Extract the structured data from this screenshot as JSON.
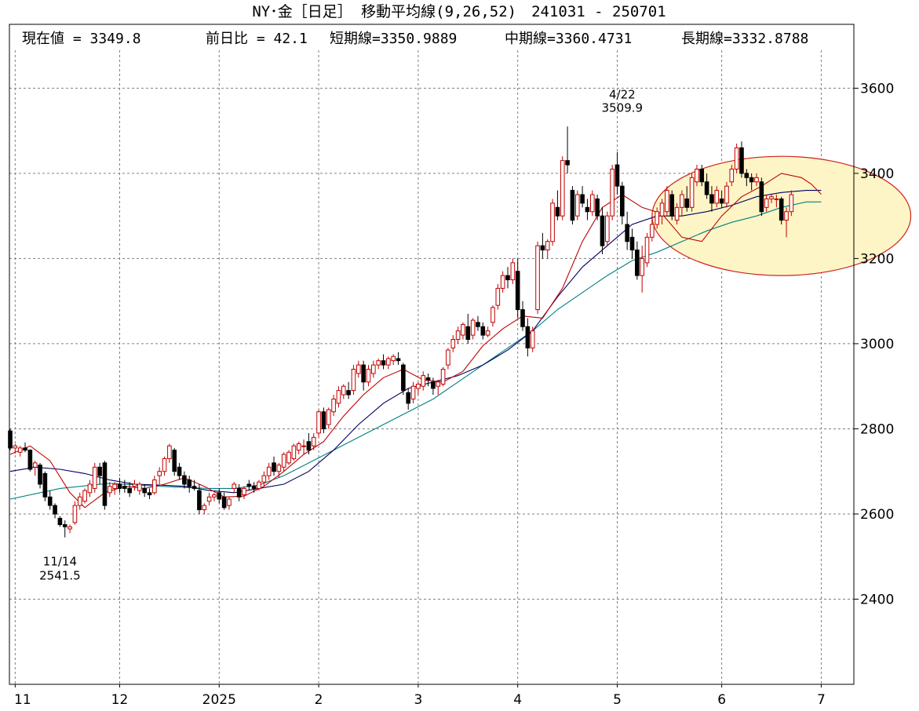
{
  "title": "NY･金［日足］ 移動平均線(9,26,52)　241031 - 250701",
  "info": {
    "current": "現在値 = 3349.8",
    "change": "前日比 = 42.1",
    "short": "短期線=3350.9889",
    "mid": "中期線=3360.4731",
    "long": "長期線=3332.8788"
  },
  "annotations": [
    {
      "label_date": "4/22",
      "label_value": "3509.9",
      "x": 123,
      "y": 3509.9
    },
    {
      "label_date": "11/14",
      "label_value": "2541.5",
      "x": 10,
      "y": 2541.5
    }
  ],
  "colors": {
    "up": "#c00000",
    "down": "#000000",
    "short_ma": "#c00000",
    "mid_ma": "#000060",
    "long_ma": "#008080",
    "grid": "#808080",
    "highlight_fill": "#fdf5c6",
    "highlight_stroke": "#d02020"
  },
  "chart_data": {
    "type": "candlestick",
    "period": "241031 - 250701",
    "ylim": [
      2200,
      3750
    ],
    "yticks": [
      2400,
      2600,
      2800,
      3000,
      3200,
      3400,
      3600
    ],
    "xticks": [
      {
        "label": "11",
        "x": 1
      },
      {
        "label": "12",
        "x": 22
      },
      {
        "label": "2025",
        "x": 42
      },
      {
        "label": "2",
        "x": 62
      },
      {
        "label": "3",
        "x": 82
      },
      {
        "label": "4",
        "x": 102
      },
      {
        "label": "5",
        "x": 122
      },
      {
        "label": "6",
        "x": 143
      },
      {
        "label": "7",
        "x": 163
      }
    ],
    "grid": true,
    "x_max": 170,
    "highlight": {
      "x": 155,
      "y": 3300,
      "rx": 26,
      "ry": 140
    },
    "candles": [
      [
        2795,
        2800,
        2750,
        2755
      ],
      [
        2755,
        2765,
        2742,
        2760
      ],
      [
        2745,
        2760,
        2735,
        2755
      ],
      [
        2755,
        2768,
        2745,
        2750
      ],
      [
        2750,
        2752,
        2700,
        2705
      ],
      [
        2710,
        2725,
        2690,
        2720
      ],
      [
        2715,
        2720,
        2660,
        2670
      ],
      [
        2695,
        2700,
        2630,
        2640
      ],
      [
        2640,
        2655,
        2610,
        2620
      ],
      [
        2620,
        2625,
        2590,
        2600
      ],
      [
        2590,
        2595,
        2570,
        2575
      ],
      [
        2575,
        2585,
        2545,
        2570
      ],
      [
        2565,
        2575,
        2555,
        2570
      ],
      [
        2580,
        2630,
        2575,
        2620
      ],
      [
        2620,
        2650,
        2610,
        2640
      ],
      [
        2630,
        2660,
        2625,
        2655
      ],
      [
        2650,
        2680,
        2640,
        2670
      ],
      [
        2660,
        2720,
        2650,
        2710
      ],
      [
        2710,
        2720,
        2670,
        2690
      ],
      [
        2720,
        2725,
        2610,
        2620
      ],
      [
        2650,
        2675,
        2640,
        2665
      ],
      [
        2660,
        2675,
        2645,
        2670
      ],
      [
        2670,
        2685,
        2650,
        2660
      ],
      [
        2665,
        2680,
        2650,
        2660
      ],
      [
        2660,
        2675,
        2640,
        2650
      ],
      [
        2665,
        2680,
        2655,
        2670
      ],
      [
        2655,
        2675,
        2645,
        2670
      ],
      [
        2660,
        2670,
        2640,
        2650
      ],
      [
        2650,
        2660,
        2635,
        2645
      ],
      [
        2650,
        2690,
        2645,
        2680
      ],
      [
        2690,
        2710,
        2670,
        2700
      ],
      [
        2700,
        2735,
        2690,
        2730
      ],
      [
        2730,
        2765,
        2720,
        2760
      ],
      [
        2750,
        2755,
        2690,
        2700
      ],
      [
        2710,
        2720,
        2680,
        2690
      ],
      [
        2690,
        2700,
        2660,
        2670
      ],
      [
        2680,
        2690,
        2650,
        2665
      ],
      [
        2665,
        2680,
        2655,
        2660
      ],
      [
        2655,
        2670,
        2600,
        2610
      ],
      [
        2610,
        2625,
        2600,
        2620
      ],
      [
        2630,
        2650,
        2620,
        2640
      ],
      [
        2640,
        2650,
        2630,
        2645
      ],
      [
        2650,
        2660,
        2625,
        2635
      ],
      [
        2640,
        2650,
        2610,
        2615
      ],
      [
        2620,
        2640,
        2610,
        2635
      ],
      [
        2660,
        2675,
        2650,
        2670
      ],
      [
        2660,
        2670,
        2630,
        2640
      ],
      [
        2645,
        2665,
        2635,
        2660
      ],
      [
        2670,
        2680,
        2655,
        2665
      ],
      [
        2665,
        2675,
        2650,
        2660
      ],
      [
        2660,
        2680,
        2655,
        2675
      ],
      [
        2675,
        2700,
        2665,
        2690
      ],
      [
        2690,
        2720,
        2680,
        2710
      ],
      [
        2720,
        2735,
        2690,
        2700
      ],
      [
        2700,
        2720,
        2685,
        2715
      ],
      [
        2710,
        2745,
        2700,
        2740
      ],
      [
        2720,
        2750,
        2715,
        2745
      ],
      [
        2730,
        2765,
        2725,
        2760
      ],
      [
        2750,
        2770,
        2740,
        2765
      ],
      [
        2760,
        2775,
        2740,
        2760
      ],
      [
        2770,
        2790,
        2740,
        2750
      ],
      [
        2760,
        2790,
        2750,
        2780
      ],
      [
        2790,
        2845,
        2780,
        2840
      ],
      [
        2840,
        2850,
        2790,
        2800
      ],
      [
        2810,
        2850,
        2800,
        2845
      ],
      [
        2840,
        2880,
        2830,
        2870
      ],
      [
        2860,
        2900,
        2850,
        2890
      ],
      [
        2880,
        2905,
        2870,
        2900
      ],
      [
        2890,
        2910,
        2870,
        2880
      ],
      [
        2890,
        2950,
        2880,
        2940
      ],
      [
        2930,
        2960,
        2920,
        2950
      ],
      [
        2950,
        2960,
        2890,
        2910
      ],
      [
        2910,
        2950,
        2900,
        2940
      ],
      [
        2930,
        2960,
        2920,
        2950
      ],
      [
        2950,
        2965,
        2940,
        2960
      ],
      [
        2960,
        2975,
        2940,
        2950
      ],
      [
        2950,
        2970,
        2940,
        2965
      ],
      [
        2960,
        2975,
        2950,
        2970
      ],
      [
        2965,
        2980,
        2950,
        2960
      ],
      [
        2950,
        2955,
        2880,
        2890
      ],
      [
        2885,
        2895,
        2845,
        2860
      ],
      [
        2870,
        2910,
        2860,
        2900
      ],
      [
        2895,
        2910,
        2880,
        2905
      ],
      [
        2900,
        2935,
        2890,
        2925
      ],
      [
        2920,
        2930,
        2900,
        2915
      ],
      [
        2910,
        2920,
        2880,
        2895
      ],
      [
        2900,
        2915,
        2880,
        2910
      ],
      [
        2905,
        2945,
        2900,
        2940
      ],
      [
        2950,
        2990,
        2940,
        2985
      ],
      [
        2990,
        3020,
        2980,
        3010
      ],
      [
        3010,
        3040,
        3000,
        3030
      ],
      [
        3020,
        3050,
        3010,
        3045
      ],
      [
        3040,
        3070,
        3000,
        3010
      ],
      [
        3020,
        3060,
        3010,
        3055
      ],
      [
        3050,
        3065,
        3030,
        3040
      ],
      [
        3040,
        3050,
        3010,
        3020
      ],
      [
        3020,
        3040,
        3015,
        3030
      ],
      [
        3050,
        3090,
        3040,
        3085
      ],
      [
        3090,
        3140,
        3080,
        3130
      ],
      [
        3130,
        3170,
        3120,
        3160
      ],
      [
        3160,
        3180,
        3130,
        3150
      ],
      [
        3150,
        3200,
        3140,
        3190
      ],
      [
        3170,
        3200,
        3060,
        3080
      ],
      [
        3080,
        3100,
        3030,
        3040
      ],
      [
        3040,
        3060,
        2970,
        2990
      ],
      [
        2990,
        3040,
        2980,
        3030
      ],
      [
        3080,
        3240,
        3070,
        3230
      ],
      [
        3230,
        3260,
        3200,
        3220
      ],
      [
        3220,
        3245,
        3200,
        3240
      ],
      [
        3240,
        3340,
        3230,
        3330
      ],
      [
        3320,
        3360,
        3290,
        3300
      ],
      [
        3300,
        3440,
        3290,
        3430
      ],
      [
        3430,
        3510,
        3400,
        3420
      ],
      [
        3360,
        3370,
        3280,
        3290
      ],
      [
        3300,
        3360,
        3290,
        3350
      ],
      [
        3350,
        3370,
        3320,
        3330
      ],
      [
        3320,
        3340,
        3290,
        3310
      ],
      [
        3310,
        3360,
        3300,
        3350
      ],
      [
        3340,
        3350,
        3290,
        3300
      ],
      [
        3300,
        3320,
        3210,
        3230
      ],
      [
        3240,
        3310,
        3230,
        3300
      ],
      [
        3300,
        3420,
        3290,
        3410
      ],
      [
        3420,
        3450,
        3350,
        3370
      ],
      [
        3370,
        3380,
        3280,
        3300
      ],
      [
        3280,
        3310,
        3220,
        3240
      ],
      [
        3250,
        3270,
        3200,
        3220
      ],
      [
        3220,
        3240,
        3150,
        3160
      ],
      [
        3160,
        3230,
        3120,
        3200
      ],
      [
        3190,
        3260,
        3180,
        3250
      ],
      [
        3250,
        3300,
        3240,
        3280
      ],
      [
        3280,
        3320,
        3270,
        3310
      ],
      [
        3300,
        3340,
        3280,
        3330
      ],
      [
        3310,
        3370,
        3300,
        3360
      ],
      [
        3350,
        3360,
        3290,
        3300
      ],
      [
        3290,
        3330,
        3280,
        3320
      ],
      [
        3320,
        3360,
        3300,
        3350
      ],
      [
        3340,
        3370,
        3310,
        3320
      ],
      [
        3320,
        3400,
        3310,
        3390
      ],
      [
        3380,
        3420,
        3370,
        3410
      ],
      [
        3410,
        3420,
        3370,
        3380
      ],
      [
        3380,
        3400,
        3340,
        3350
      ],
      [
        3350,
        3370,
        3310,
        3330
      ],
      [
        3330,
        3370,
        3320,
        3360
      ],
      [
        3340,
        3360,
        3320,
        3330
      ],
      [
        3330,
        3380,
        3320,
        3370
      ],
      [
        3380,
        3420,
        3370,
        3410
      ],
      [
        3410,
        3470,
        3400,
        3460
      ],
      [
        3460,
        3475,
        3390,
        3400
      ],
      [
        3400,
        3410,
        3370,
        3390
      ],
      [
        3390,
        3400,
        3360,
        3380
      ],
      [
        3380,
        3400,
        3370,
        3390
      ],
      [
        3380,
        3390,
        3300,
        3310
      ],
      [
        3320,
        3350,
        3310,
        3340
      ],
      [
        3340,
        3350,
        3330,
        3345
      ],
      [
        3340,
        3350,
        3320,
        3340
      ],
      [
        3340,
        3345,
        3280,
        3290
      ],
      [
        3290,
        3320,
        3250,
        3310
      ],
      [
        3310,
        3360,
        3300,
        3350
      ]
    ],
    "ma_short": [
      [
        0,
        2740
      ],
      [
        4,
        2760
      ],
      [
        8,
        2725
      ],
      [
        12,
        2650
      ],
      [
        15,
        2615
      ],
      [
        19,
        2650
      ],
      [
        23,
        2665
      ],
      [
        27,
        2660
      ],
      [
        31,
        2670
      ],
      [
        35,
        2685
      ],
      [
        39,
        2665
      ],
      [
        43,
        2640
      ],
      [
        47,
        2642
      ],
      [
        51,
        2665
      ],
      [
        55,
        2700
      ],
      [
        59,
        2740
      ],
      [
        63,
        2770
      ],
      [
        67,
        2830
      ],
      [
        71,
        2880
      ],
      [
        75,
        2920
      ],
      [
        79,
        2940
      ],
      [
        83,
        2915
      ],
      [
        87,
        2910
      ],
      [
        91,
        2935
      ],
      [
        95,
        2995
      ],
      [
        99,
        3035
      ],
      [
        103,
        3065
      ],
      [
        107,
        3060
      ],
      [
        111,
        3130
      ],
      [
        115,
        3240
      ],
      [
        119,
        3320
      ],
      [
        123,
        3350
      ],
      [
        127,
        3320
      ],
      [
        131,
        3305
      ],
      [
        135,
        3250
      ],
      [
        139,
        3240
      ],
      [
        143,
        3300
      ],
      [
        147,
        3345
      ],
      [
        151,
        3370
      ],
      [
        155,
        3400
      ],
      [
        159,
        3390
      ],
      [
        161,
        3375
      ],
      [
        163,
        3351
      ]
    ],
    "ma_mid": [
      [
        0,
        2700
      ],
      [
        5,
        2710
      ],
      [
        10,
        2705
      ],
      [
        15,
        2695
      ],
      [
        20,
        2680
      ],
      [
        25,
        2670
      ],
      [
        30,
        2668
      ],
      [
        35,
        2665
      ],
      [
        40,
        2655
      ],
      [
        45,
        2650
      ],
      [
        50,
        2660
      ],
      [
        55,
        2670
      ],
      [
        60,
        2700
      ],
      [
        65,
        2750
      ],
      [
        70,
        2810
      ],
      [
        75,
        2860
      ],
      [
        80,
        2895
      ],
      [
        85,
        2910
      ],
      [
        90,
        2925
      ],
      [
        95,
        2950
      ],
      [
        100,
        2985
      ],
      [
        105,
        3030
      ],
      [
        110,
        3110
      ],
      [
        115,
        3180
      ],
      [
        120,
        3230
      ],
      [
        125,
        3280
      ],
      [
        130,
        3300
      ],
      [
        135,
        3300
      ],
      [
        140,
        3310
      ],
      [
        145,
        3325
      ],
      [
        150,
        3345
      ],
      [
        155,
        3355
      ],
      [
        160,
        3360
      ],
      [
        163,
        3360
      ]
    ],
    "ma_long": [
      [
        0,
        2635
      ],
      [
        10,
        2660
      ],
      [
        20,
        2672
      ],
      [
        30,
        2665
      ],
      [
        40,
        2660
      ],
      [
        45,
        2660
      ],
      [
        50,
        2668
      ],
      [
        55,
        2690
      ],
      [
        60,
        2720
      ],
      [
        65,
        2750
      ],
      [
        70,
        2780
      ],
      [
        75,
        2810
      ],
      [
        80,
        2840
      ],
      [
        85,
        2870
      ],
      [
        90,
        2910
      ],
      [
        95,
        2950
      ],
      [
        100,
        2990
      ],
      [
        105,
        3030
      ],
      [
        110,
        3080
      ],
      [
        115,
        3120
      ],
      [
        120,
        3160
      ],
      [
        125,
        3195
      ],
      [
        130,
        3215
      ],
      [
        135,
        3240
      ],
      [
        140,
        3265
      ],
      [
        145,
        3285
      ],
      [
        150,
        3300
      ],
      [
        155,
        3320
      ],
      [
        160,
        3333
      ],
      [
        163,
        3333
      ]
    ]
  }
}
